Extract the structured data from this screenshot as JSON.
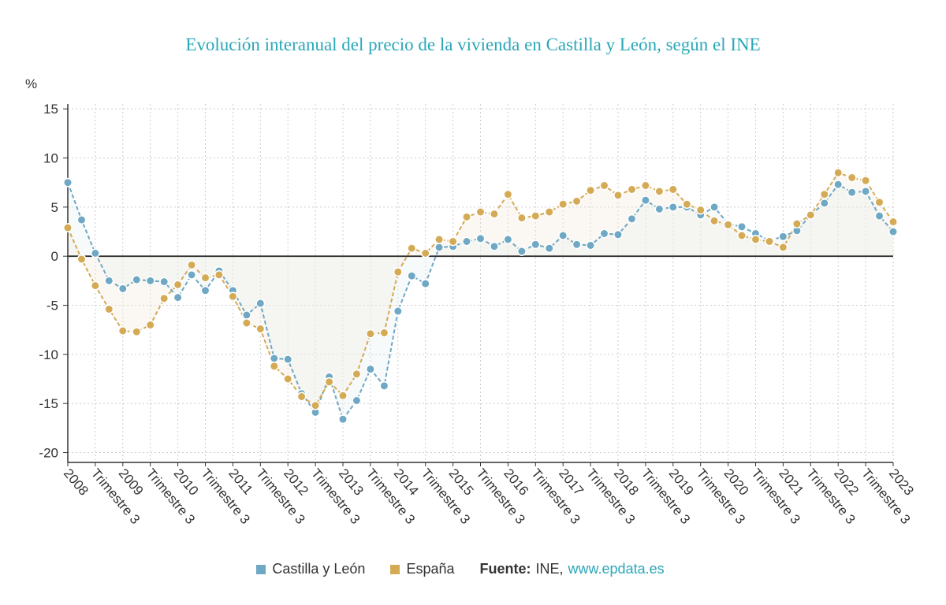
{
  "chart_data": {
    "type": "line",
    "title": "Evolución interanual del precio de la vivienda en Castilla y León, según el INE",
    "ylabel": "%",
    "ylim": [
      -21,
      15.5
    ],
    "yticks": [
      15,
      10,
      5,
      0,
      -5,
      -10,
      -15,
      -20
    ],
    "grid": true,
    "legend_position": "bottom",
    "x_tick_labels": [
      "2008",
      "Trimestre 3",
      "2009",
      "Trimestre 3",
      "2010",
      "Trimestre 3",
      "2011",
      "Trimestre 3",
      "2012",
      "Trimestre 3",
      "2013",
      "Trimestre 3",
      "2014",
      "Trimestre 3",
      "2015",
      "Trimestre 3",
      "2016",
      "Trimestre 3",
      "2017",
      "Trimestre 3",
      "2018",
      "Trimestre 3",
      "2019",
      "Trimestre 3",
      "2020",
      "Trimestre 3",
      "2021",
      "Trimestre 3",
      "2022",
      "Trimestre 3",
      "2023"
    ],
    "series": [
      {
        "name": "Castilla y León",
        "color": "#6fa8c4",
        "values": [
          7.5,
          3.7,
          0.3,
          -2.5,
          -3.3,
          -2.4,
          -2.5,
          -2.6,
          -4.2,
          -1.9,
          -3.5,
          -1.5,
          -3.5,
          -6.0,
          -4.8,
          -10.4,
          -10.5,
          -14.0,
          -15.9,
          -12.3,
          -16.6,
          -14.7,
          -11.5,
          -13.2,
          -5.6,
          -2.0,
          -2.8,
          0.9,
          1.0,
          1.5,
          1.8,
          1.0,
          1.7,
          0.5,
          1.2,
          0.8,
          2.1,
          1.2,
          1.1,
          2.3,
          2.2,
          3.8,
          5.7,
          4.8,
          5.0,
          5.0,
          4.2,
          5.0,
          3.3,
          3.0,
          2.3,
          1.6,
          2.0,
          2.6,
          4.2,
          5.4,
          7.3,
          6.5,
          6.6,
          4.1,
          2.5
        ]
      },
      {
        "name": "España",
        "color": "#d4aa55",
        "values": [
          2.9,
          -0.3,
          -3.0,
          -5.4,
          -7.6,
          -7.7,
          -7.0,
          -4.3,
          -2.9,
          -0.9,
          -2.2,
          -1.9,
          -4.1,
          -6.8,
          -7.4,
          -11.2,
          -12.5,
          -14.3,
          -15.2,
          -12.8,
          -14.2,
          -12.0,
          -7.9,
          -7.8,
          -1.6,
          0.8,
          0.3,
          1.7,
          1.5,
          4.0,
          4.5,
          4.3,
          6.3,
          3.9,
          4.1,
          4.5,
          5.3,
          5.6,
          6.7,
          7.2,
          6.2,
          6.8,
          7.2,
          6.6,
          6.8,
          5.3,
          4.7,
          3.6,
          3.2,
          2.1,
          1.7,
          1.5,
          0.9,
          3.3,
          4.2,
          6.3,
          8.5,
          8.0,
          7.7,
          5.5,
          3.5
        ]
      }
    ]
  },
  "legend": {
    "items": [
      {
        "label": "Castilla y León",
        "color": "#6fa8c4"
      },
      {
        "label": "España",
        "color": "#d4aa55"
      }
    ],
    "source_label": "Fuente:",
    "source_text": "INE,",
    "source_link": "www.epdata.es"
  }
}
